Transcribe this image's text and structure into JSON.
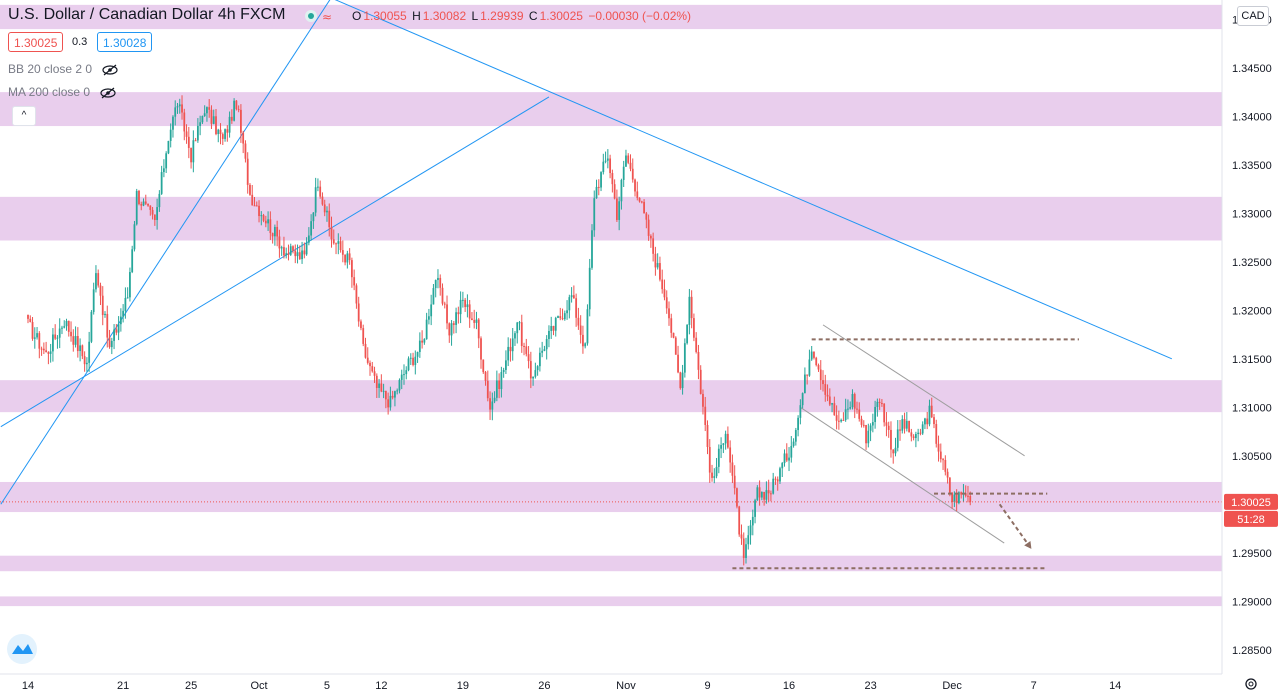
{
  "header": {
    "symbol_title": "U.S. Dollar / Canadian Dollar  4h  FXCM",
    "ohlc": {
      "o_label": "O",
      "o": "1.30055",
      "h_label": "H",
      "h": "1.30082",
      "l_label": "L",
      "l": "1.29939",
      "c_label": "C",
      "c": "1.30025",
      "change": "−0.00030 (−0.02%)"
    }
  },
  "trade": {
    "sell_price": "1.30025",
    "spread": "0.3",
    "buy_price": "1.30028"
  },
  "indicators": [
    {
      "label": "BB 20 close 2 0"
    },
    {
      "label": "MA 200 close 0"
    }
  ],
  "collapse_symbol": "^",
  "currency_badge": "CAD",
  "colors": {
    "up": "#26a69a",
    "down": "#ef5350",
    "zone": "#e1bee7",
    "trendline": "#2196f3",
    "channel": "#9e9e9e",
    "dashed": "#8d6e63",
    "price_tag": "#ef5350"
  },
  "chart_data": {
    "type": "candlestick",
    "title": "U.S. Dollar / Canadian Dollar",
    "timeframe": "4h",
    "ylim": [
      1.2825,
      1.352
    ],
    "y_ticks": [
      "1.35000",
      "1.34500",
      "1.34000",
      "1.33500",
      "1.33000",
      "1.32500",
      "1.32000",
      "1.31500",
      "1.31000",
      "1.30500",
      "1.30000",
      "1.29500",
      "1.29000",
      "1.28500"
    ],
    "x_ticks": [
      "14",
      "21",
      "25",
      "Oct",
      "5",
      "12",
      "19",
      "26",
      "Nov",
      "9",
      "16",
      "23",
      "Dec",
      "7",
      "14"
    ],
    "x_tick_bars": [
      0,
      42,
      72,
      102,
      132,
      156,
      192,
      228,
      264,
      300,
      336,
      372,
      408,
      444,
      480
    ],
    "last_price": "1.30025",
    "countdown": "51:28",
    "path": [
      [
        0,
        1.3185
      ],
      [
        8,
        1.3155
      ],
      [
        16,
        1.319
      ],
      [
        26,
        1.3145
      ],
      [
        30,
        1.3245
      ],
      [
        36,
        1.316
      ],
      [
        44,
        1.3215
      ],
      [
        48,
        1.332
      ],
      [
        56,
        1.329
      ],
      [
        62,
        1.338
      ],
      [
        66,
        1.3415
      ],
      [
        72,
        1.336
      ],
      [
        78,
        1.341
      ],
      [
        86,
        1.3375
      ],
      [
        92,
        1.3415
      ],
      [
        98,
        1.332
      ],
      [
        106,
        1.329
      ],
      [
        114,
        1.326
      ],
      [
        122,
        1.3255
      ],
      [
        128,
        1.3335
      ],
      [
        134,
        1.3275
      ],
      [
        142,
        1.325
      ],
      [
        148,
        1.316
      ],
      [
        154,
        1.312
      ],
      [
        160,
        1.3105
      ],
      [
        168,
        1.3145
      ],
      [
        174,
        1.3165
      ],
      [
        180,
        1.3235
      ],
      [
        186,
        1.318
      ],
      [
        192,
        1.321
      ],
      [
        198,
        1.3185
      ],
      [
        204,
        1.31
      ],
      [
        210,
        1.314
      ],
      [
        216,
        1.319
      ],
      [
        222,
        1.313
      ],
      [
        228,
        1.3165
      ],
      [
        234,
        1.319
      ],
      [
        240,
        1.3215
      ],
      [
        246,
        1.316
      ],
      [
        250,
        1.332
      ],
      [
        256,
        1.336
      ],
      [
        260,
        1.33
      ],
      [
        264,
        1.336
      ],
      [
        270,
        1.3315
      ],
      [
        276,
        1.326
      ],
      [
        282,
        1.321
      ],
      [
        288,
        1.312
      ],
      [
        292,
        1.3215
      ],
      [
        298,
        1.31
      ],
      [
        302,
        1.302
      ],
      [
        308,
        1.308
      ],
      [
        312,
        1.301
      ],
      [
        316,
        1.294
      ],
      [
        322,
        1.301
      ],
      [
        328,
        1.3015
      ],
      [
        336,
        1.3055
      ],
      [
        340,
        1.309
      ],
      [
        346,
        1.3165
      ],
      [
        352,
        1.312
      ],
      [
        358,
        1.308
      ],
      [
        364,
        1.311
      ],
      [
        370,
        1.307
      ],
      [
        376,
        1.311
      ],
      [
        382,
        1.3055
      ],
      [
        386,
        1.3085
      ],
      [
        392,
        1.3065
      ],
      [
        398,
        1.3095
      ],
      [
        404,
        1.304
      ],
      [
        408,
        1.3005
      ],
      [
        414,
        1.3012
      ],
      [
        416,
        1.30025
      ]
    ],
    "zones": [
      {
        "from": 1.349,
        "to": 1.3515
      },
      {
        "from": 1.339,
        "to": 1.3425
      },
      {
        "from": 1.3272,
        "to": 1.3317
      },
      {
        "from": 1.3095,
        "to": 1.3128
      },
      {
        "from": 1.2992,
        "to": 1.3023
      },
      {
        "from": 1.2931,
        "to": 1.2947
      },
      {
        "from": 1.2895,
        "to": 1.2905
      }
    ],
    "trendlines": [
      {
        "x1": -12,
        "y1": 1.3,
        "x2": 136,
        "y2": 1.353,
        "color": "trendline"
      },
      {
        "x1": -12,
        "y1": 1.308,
        "x2": 230,
        "y2": 1.342,
        "color": "trendline"
      },
      {
        "x1": 126,
        "y1": 1.353,
        "x2": 505,
        "y2": 1.315,
        "color": "trendline"
      },
      {
        "x1": 351,
        "y1": 1.3185,
        "x2": 440,
        "y2": 1.305,
        "color": "channel"
      },
      {
        "x1": 341,
        "y1": 1.31,
        "x2": 431,
        "y2": 1.296,
        "color": "channel"
      }
    ],
    "dashed_levels": [
      {
        "x1": 346,
        "x2": 464,
        "y": 1.317
      },
      {
        "x1": 400,
        "x2": 450,
        "y": 1.3011
      },
      {
        "x1": 311,
        "x2": 449,
        "y": 1.2934
      }
    ],
    "arrow": {
      "x1": 429,
      "y1": 1.3,
      "x2": 443,
      "y2": 1.2954
    }
  }
}
